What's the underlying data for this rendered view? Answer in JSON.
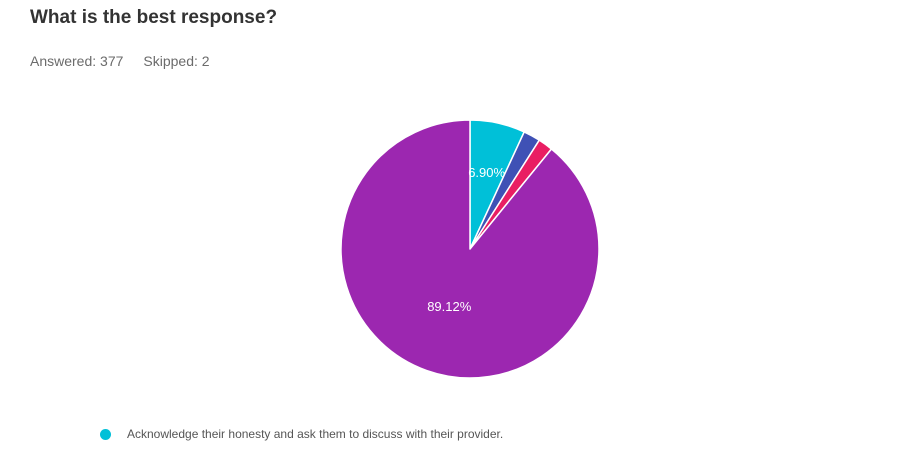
{
  "question": {
    "title": "What is the best response?",
    "answered": "Answered: 377",
    "skipped": "Skipped: 2"
  },
  "chart_data": {
    "type": "pie",
    "slices": [
      {
        "value": 6.9,
        "label": "6.90%",
        "color": "#00C0D8"
      },
      {
        "value": 2.12,
        "label": "",
        "color": "#3F51B5"
      },
      {
        "value": 1.86,
        "label": "",
        "color": "#E91E63"
      },
      {
        "value": 89.12,
        "label": "89.12%",
        "color": "#9C27B0"
      }
    ],
    "legend": [
      {
        "label": "Acknowledge their honesty and ask them to discuss with their provider.",
        "color": "#00C0D8"
      }
    ]
  }
}
